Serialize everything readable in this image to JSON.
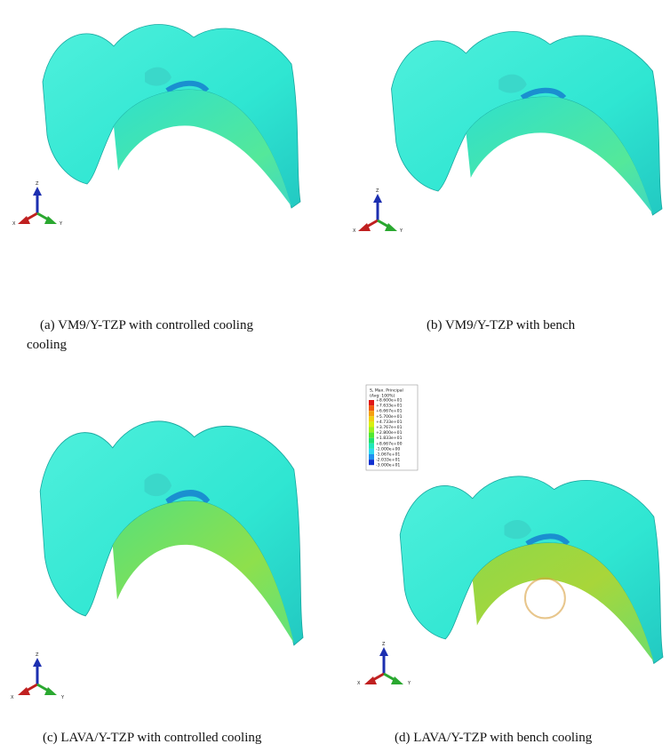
{
  "panels": [
    {
      "caption": "(a) VM9/Y-TZP with controlled cooling",
      "caption_continued": "cooling",
      "axes": {
        "z": "Z",
        "x": "X",
        "y": "Y"
      }
    },
    {
      "caption": "(b) VM9/Y-TZP with bench",
      "axes": {
        "z": "Z",
        "x": "X",
        "y": "Y"
      }
    },
    {
      "caption": "(c) LAVA/Y-TZP with controlled cooling",
      "axes": {
        "z": "Z",
        "x": "X",
        "y": "Y"
      }
    },
    {
      "caption": "(d) LAVA/Y-TZP with bench cooling",
      "axes": {
        "z": "Z",
        "x": "X",
        "y": "Y"
      }
    }
  ],
  "legend": {
    "title": "S, Max. Principal",
    "subtitle": "(Avg: 100%)",
    "labels": [
      "+8.600e+01",
      "+7.633e+01",
      "+6.667e+01",
      "+5.700e+01",
      "+4.733e+01",
      "+3.767e+01",
      "+2.800e+01",
      "+1.833e+01",
      "+8.667e+00",
      "-1.000e+00",
      "-1.067e+01",
      "-2.033e+01",
      "-3.000e+01"
    ]
  }
}
